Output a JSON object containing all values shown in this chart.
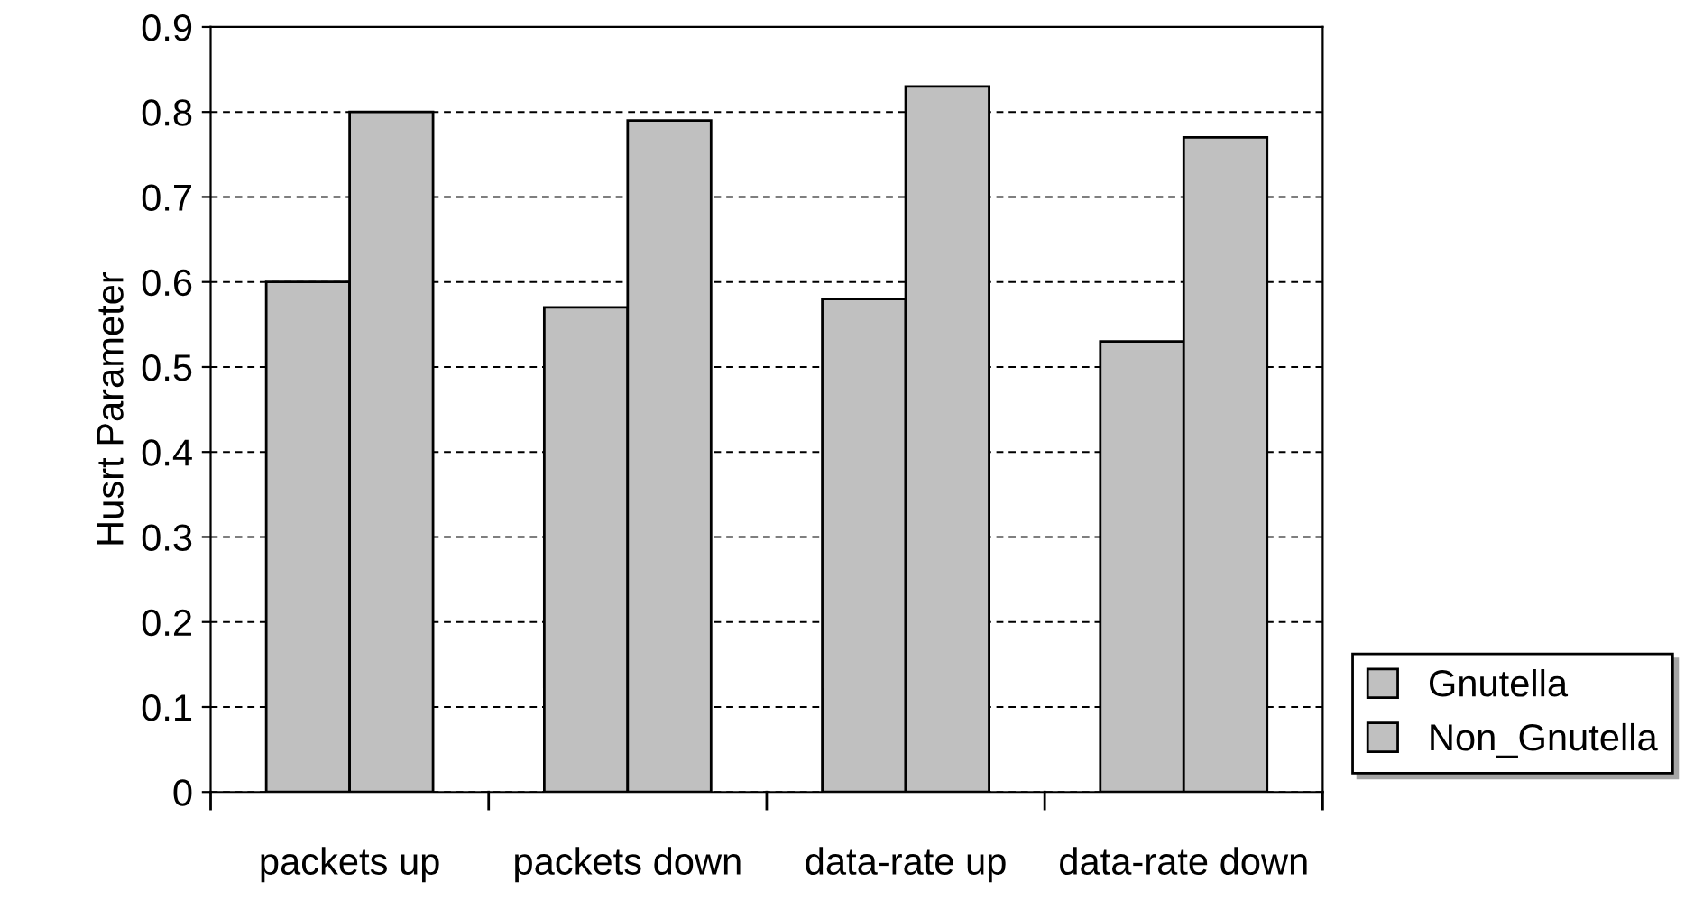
{
  "chart_data": {
    "type": "bar",
    "ylabel": "Husrt Parameter",
    "categories": [
      "packets up",
      "packets down",
      "data-rate up",
      "data-rate down"
    ],
    "series": [
      {
        "name": "Gnutella",
        "color": "#c0c0c0",
        "values": [
          0.6,
          0.57,
          0.58,
          0.53
        ]
      },
      {
        "name": "Non_Gnutella",
        "color": "#c0c0c0",
        "values": [
          0.8,
          0.79,
          0.83,
          0.77
        ]
      }
    ],
    "ylim": [
      0,
      0.9
    ],
    "yticks": [
      0,
      0.1,
      0.2,
      0.3,
      0.4,
      0.5,
      0.6,
      0.7,
      0.8,
      0.9
    ],
    "grid": "y",
    "legend": "bottom right"
  }
}
